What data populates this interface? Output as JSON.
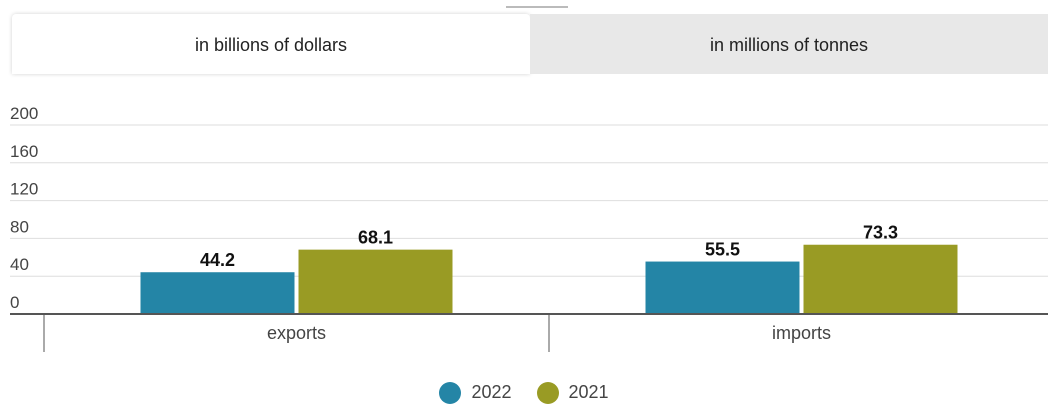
{
  "tabs": [
    {
      "label": "in billions of dollars",
      "active": true
    },
    {
      "label": "in millions of tonnes",
      "active": false
    }
  ],
  "chart_data": {
    "type": "bar",
    "categories": [
      "exports",
      "imports"
    ],
    "series": [
      {
        "name": "2022",
        "color": "#2485a6",
        "values": [
          44.2,
          55.5
        ]
      },
      {
        "name": "2021",
        "color": "#999b24",
        "values": [
          68.1,
          73.3
        ]
      }
    ],
    "y_ticks": [
      0,
      40,
      80,
      120,
      160,
      200
    ],
    "ylim": [
      0,
      200
    ],
    "grid": true,
    "legend_position": "bottom-center",
    "data_labels": true
  }
}
